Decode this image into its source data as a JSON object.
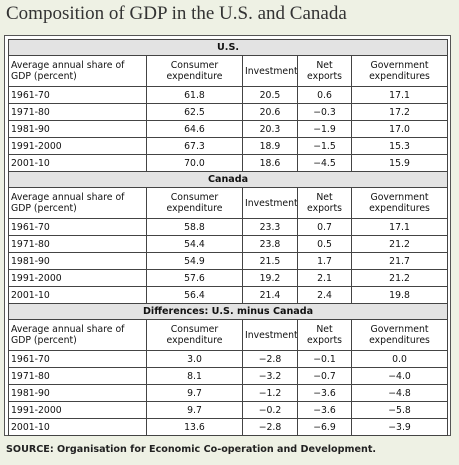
{
  "title": "Composition of GDP in the U.S. and Canada",
  "source": "SOURCE: Organisation for Economic Co-operation and Development.",
  "chart_data": {
    "type": "table",
    "row_header": "Average annual share of GDP (percent)",
    "columns": [
      "Consumer expenditure",
      "Investment",
      "Net exports",
      "Government expenditures"
    ],
    "sections": [
      {
        "name": "U.S.",
        "rows": [
          {
            "period": "1961-70",
            "values": [
              "61.8",
              "20.5",
              "0.6",
              "17.1"
            ]
          },
          {
            "period": "1971-80",
            "values": [
              "62.5",
              "20.6",
              "−0.3",
              "17.2"
            ]
          },
          {
            "period": "1981-90",
            "values": [
              "64.6",
              "20.3",
              "−1.9",
              "17.0"
            ]
          },
          {
            "period": "1991-2000",
            "values": [
              "67.3",
              "18.9",
              "−1.5",
              "15.3"
            ]
          },
          {
            "period": "2001-10",
            "values": [
              "70.0",
              "18.6",
              "−4.5",
              "15.9"
            ]
          }
        ]
      },
      {
        "name": "Canada",
        "rows": [
          {
            "period": "1961-70",
            "values": [
              "58.8",
              "23.3",
              "0.7",
              "17.1"
            ]
          },
          {
            "period": "1971-80",
            "values": [
              "54.4",
              "23.8",
              "0.5",
              "21.2"
            ]
          },
          {
            "period": "1981-90",
            "values": [
              "54.9",
              "21.5",
              "1.7",
              "21.7"
            ]
          },
          {
            "period": "1991-2000",
            "values": [
              "57.6",
              "19.2",
              "2.1",
              "21.2"
            ]
          },
          {
            "period": "2001-10",
            "values": [
              "56.4",
              "21.4",
              "2.4",
              "19.8"
            ]
          }
        ]
      },
      {
        "name": "Differences: U.S. minus Canada",
        "rows": [
          {
            "period": "1961-70",
            "values": [
              "3.0",
              "−2.8",
              "−0.1",
              "0.0"
            ]
          },
          {
            "period": "1971-80",
            "values": [
              "8.1",
              "−3.2",
              "−0.7",
              "−4.0"
            ]
          },
          {
            "period": "1981-90",
            "values": [
              "9.7",
              "−1.2",
              "−3.6",
              "−4.8"
            ]
          },
          {
            "period": "1991-2000",
            "values": [
              "9.7",
              "−0.2",
              "−3.6",
              "−5.8"
            ]
          },
          {
            "period": "2001-10",
            "values": [
              "13.6",
              "−2.8",
              "−6.9",
              "−3.9"
            ]
          }
        ]
      }
    ]
  }
}
